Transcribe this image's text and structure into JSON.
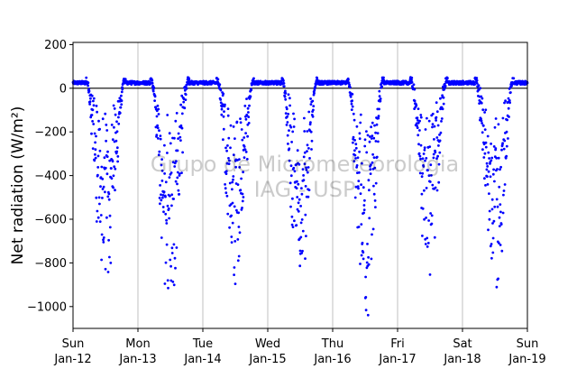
{
  "chart_data": {
    "type": "scatter",
    "title": "",
    "ylabel": "Net radiation (W/m²)",
    "xlabel": "",
    "ylim": [
      -1100,
      210
    ],
    "xlim_days": [
      0,
      7
    ],
    "yticks": [
      200,
      0,
      -200,
      -400,
      -600,
      -800,
      -1000
    ],
    "ytick_labels": [
      "200",
      "0",
      "−200",
      "−400",
      "−600",
      "−800",
      "−1000"
    ],
    "xticks": [
      {
        "day": "Sun",
        "date": "Jan-12"
      },
      {
        "day": "Mon",
        "date": "Jan-13"
      },
      {
        "day": "Tue",
        "date": "Jan-14"
      },
      {
        "day": "Wed",
        "date": "Jan-15"
      },
      {
        "day": "Thu",
        "date": "Jan-16"
      },
      {
        "day": "Fri",
        "date": "Jan-17"
      },
      {
        "day": "Sat",
        "date": "Jan-18"
      },
      {
        "day": "Sun",
        "date": "Jan-19"
      }
    ],
    "grid": "vertical",
    "zero_line": true,
    "marker_color": "#0000ff",
    "series": [
      {
        "night_level": 25,
        "days": [
          {
            "start": 0.22,
            "end": 0.78,
            "peak": 0.45,
            "min": -920
          },
          {
            "start": 1.22,
            "end": 1.76,
            "peak": 1.5,
            "min": -1070
          },
          {
            "start": 2.24,
            "end": 2.76,
            "peak": 2.48,
            "min": -960
          },
          {
            "start": 3.24,
            "end": 3.74,
            "peak": 3.5,
            "min": -980
          },
          {
            "start": 4.25,
            "end": 4.76,
            "peak": 4.5,
            "min": -1090
          },
          {
            "start": 5.22,
            "end": 5.74,
            "peak": 5.46,
            "min": -940
          },
          {
            "start": 6.22,
            "end": 6.76,
            "peak": 6.52,
            "min": -1050
          }
        ]
      }
    ],
    "watermark_lines": [
      "Grupo de Micrometeorologia",
      "IAG - USP"
    ]
  }
}
